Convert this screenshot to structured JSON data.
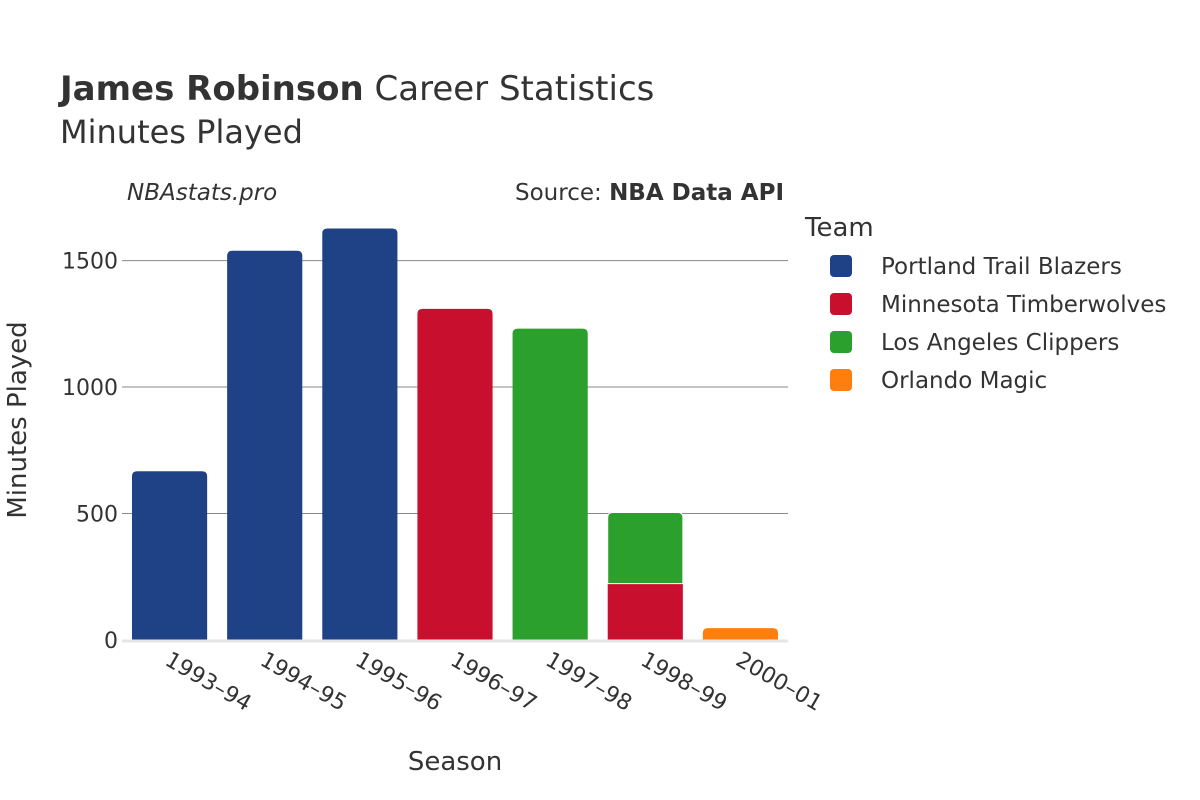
{
  "title": {
    "player": "James Robinson",
    "suffix": "Career Statistics",
    "subtitle": "Minutes Played"
  },
  "brand": "NBAstats.pro",
  "source": {
    "prefix": "Source: ",
    "name": "NBA Data API"
  },
  "legend": {
    "title": "Team",
    "items": [
      {
        "name": "Portland Trail Blazers",
        "color": "#1f4287"
      },
      {
        "name": "Minnesota Timberwolves",
        "color": "#c8102e"
      },
      {
        "name": "Los Angeles Clippers",
        "color": "#2ca02c"
      },
      {
        "name": "Orlando Magic",
        "color": "#ff7f0e"
      }
    ]
  },
  "chart_data": {
    "type": "bar",
    "stacked": true,
    "title": "James Robinson Career Statistics",
    "subtitle": "Minutes Played",
    "xlabel": "Season",
    "ylabel": "Minutes Played",
    "ylim": [
      0,
      1700
    ],
    "yticks": [
      0,
      500,
      1000,
      1500
    ],
    "yticklabels": [
      "0",
      "500",
      "1000",
      "1500"
    ],
    "grid": true,
    "legend_position": "right",
    "categories": [
      "1993–94",
      "1994–95",
      "1995–96",
      "1996–97",
      "1997–98",
      "1998–99",
      "2000–01"
    ],
    "series": [
      {
        "name": "Portland Trail Blazers",
        "color": "#1f4287",
        "values": [
          667,
          1539,
          1627,
          0,
          0,
          0,
          0
        ]
      },
      {
        "name": "Minnesota Timberwolves",
        "color": "#c8102e",
        "values": [
          0,
          0,
          0,
          1309,
          0,
          223,
          0
        ]
      },
      {
        "name": "Los Angeles Clippers",
        "color": "#2ca02c",
        "values": [
          0,
          0,
          0,
          0,
          1231,
          281,
          0
        ]
      },
      {
        "name": "Orlando Magic",
        "color": "#ff7f0e",
        "values": [
          0,
          0,
          0,
          0,
          0,
          0,
          47
        ]
      }
    ]
  }
}
